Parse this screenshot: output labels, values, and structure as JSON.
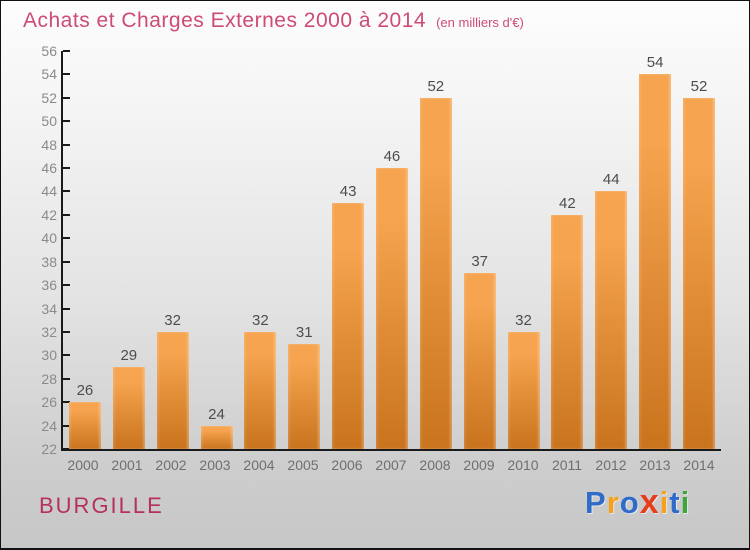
{
  "header": {
    "title": "Achats et Charges Externes 2000 à 2014",
    "subtitle": "(en milliers d'€)"
  },
  "chart_data": {
    "type": "bar",
    "title": "Achats et Charges Externes 2000 à 2014",
    "subtitle": "(en milliers d'€)",
    "categories": [
      "2000",
      "2001",
      "2002",
      "2003",
      "2004",
      "2005",
      "2006",
      "2007",
      "2008",
      "2009",
      "2010",
      "2011",
      "2012",
      "2013",
      "2014"
    ],
    "values": [
      26,
      29,
      32,
      24,
      32,
      31,
      43,
      46,
      52,
      37,
      32,
      42,
      44,
      54,
      52
    ],
    "xlabel": "",
    "ylabel": "",
    "ylim": [
      22,
      56
    ],
    "ytick_step": 2,
    "grid": false,
    "legend_position": "none",
    "bar_labels_shown": true
  },
  "footer": {
    "location": "BURGILLE",
    "logo_letters": [
      {
        "ch": "P",
        "color": "#2F6BC9"
      },
      {
        "ch": "r",
        "color": "#F6A01D"
      },
      {
        "ch": "o",
        "color": "#2F6BC9"
      },
      {
        "ch": "x",
        "color": "#E63E1C"
      },
      {
        "ch": "i",
        "color": "#F6A01D"
      },
      {
        "ch": "t",
        "color": "#2F6BC9"
      },
      {
        "ch": "i",
        "color": "#3FA53C"
      }
    ]
  },
  "colors": {
    "title": "#CE4B74",
    "location": "#B6305F",
    "axis": "#1a1a1a",
    "tick_label": "#8a8a8a",
    "bar_label": "#4d4d4d",
    "x_label": "#6f6f6f",
    "bar_top": "#F6A44F",
    "bar_bottom": "#C9731D"
  }
}
